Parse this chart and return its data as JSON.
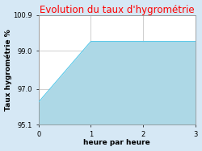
{
  "title": "Evolution du taux d'hygrométrie",
  "title_color": "#ff0000",
  "xlabel": "heure par heure",
  "ylabel": "Taux hygrométrie %",
  "x": [
    0,
    1,
    2,
    3
  ],
  "y": [
    96.3,
    99.5,
    99.5,
    99.5
  ],
  "ylim": [
    95.1,
    100.9
  ],
  "xlim": [
    0,
    3
  ],
  "yticks": [
    95.1,
    97.0,
    99.0,
    100.9
  ],
  "xticks": [
    0,
    1,
    2,
    3
  ],
  "fill_color": "#add8e6",
  "line_color": "#5bc8e8",
  "bg_color": "#d6e8f5",
  "plot_bg_color": "#ffffff",
  "grid_color": "#c8c8c8",
  "title_fontsize": 8.5,
  "label_fontsize": 6.5,
  "tick_fontsize": 6
}
